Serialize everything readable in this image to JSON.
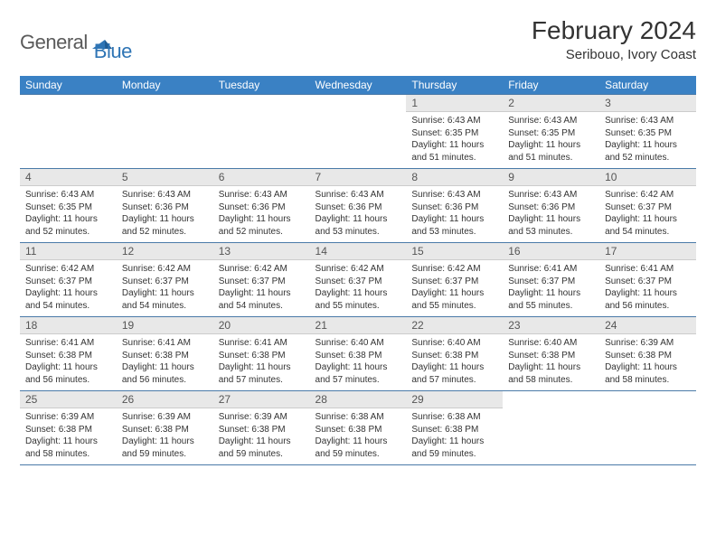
{
  "logo": {
    "text1": "General",
    "text2": "Blue"
  },
  "title": "February 2024",
  "subtitle": "Seribouo, Ivory Coast",
  "colors": {
    "header_bg": "#3a81c4",
    "header_text": "#ffffff",
    "daynum_bg": "#e8e8e8",
    "row_border": "#4a7aa8",
    "logo_gray": "#5a5a5a",
    "logo_blue": "#2f75b5"
  },
  "weekdays": [
    "Sunday",
    "Monday",
    "Tuesday",
    "Wednesday",
    "Thursday",
    "Friday",
    "Saturday"
  ],
  "weeks": [
    [
      {
        "empty": true
      },
      {
        "empty": true
      },
      {
        "empty": true
      },
      {
        "empty": true
      },
      {
        "day": "1",
        "sunrise": "6:43 AM",
        "sunset": "6:35 PM",
        "daylight": "11 hours and 51 minutes."
      },
      {
        "day": "2",
        "sunrise": "6:43 AM",
        "sunset": "6:35 PM",
        "daylight": "11 hours and 51 minutes."
      },
      {
        "day": "3",
        "sunrise": "6:43 AM",
        "sunset": "6:35 PM",
        "daylight": "11 hours and 52 minutes."
      }
    ],
    [
      {
        "day": "4",
        "sunrise": "6:43 AM",
        "sunset": "6:35 PM",
        "daylight": "11 hours and 52 minutes."
      },
      {
        "day": "5",
        "sunrise": "6:43 AM",
        "sunset": "6:36 PM",
        "daylight": "11 hours and 52 minutes."
      },
      {
        "day": "6",
        "sunrise": "6:43 AM",
        "sunset": "6:36 PM",
        "daylight": "11 hours and 52 minutes."
      },
      {
        "day": "7",
        "sunrise": "6:43 AM",
        "sunset": "6:36 PM",
        "daylight": "11 hours and 53 minutes."
      },
      {
        "day": "8",
        "sunrise": "6:43 AM",
        "sunset": "6:36 PM",
        "daylight": "11 hours and 53 minutes."
      },
      {
        "day": "9",
        "sunrise": "6:43 AM",
        "sunset": "6:36 PM",
        "daylight": "11 hours and 53 minutes."
      },
      {
        "day": "10",
        "sunrise": "6:42 AM",
        "sunset": "6:37 PM",
        "daylight": "11 hours and 54 minutes."
      }
    ],
    [
      {
        "day": "11",
        "sunrise": "6:42 AM",
        "sunset": "6:37 PM",
        "daylight": "11 hours and 54 minutes."
      },
      {
        "day": "12",
        "sunrise": "6:42 AM",
        "sunset": "6:37 PM",
        "daylight": "11 hours and 54 minutes."
      },
      {
        "day": "13",
        "sunrise": "6:42 AM",
        "sunset": "6:37 PM",
        "daylight": "11 hours and 54 minutes."
      },
      {
        "day": "14",
        "sunrise": "6:42 AM",
        "sunset": "6:37 PM",
        "daylight": "11 hours and 55 minutes."
      },
      {
        "day": "15",
        "sunrise": "6:42 AM",
        "sunset": "6:37 PM",
        "daylight": "11 hours and 55 minutes."
      },
      {
        "day": "16",
        "sunrise": "6:41 AM",
        "sunset": "6:37 PM",
        "daylight": "11 hours and 55 minutes."
      },
      {
        "day": "17",
        "sunrise": "6:41 AM",
        "sunset": "6:37 PM",
        "daylight": "11 hours and 56 minutes."
      }
    ],
    [
      {
        "day": "18",
        "sunrise": "6:41 AM",
        "sunset": "6:38 PM",
        "daylight": "11 hours and 56 minutes."
      },
      {
        "day": "19",
        "sunrise": "6:41 AM",
        "sunset": "6:38 PM",
        "daylight": "11 hours and 56 minutes."
      },
      {
        "day": "20",
        "sunrise": "6:41 AM",
        "sunset": "6:38 PM",
        "daylight": "11 hours and 57 minutes."
      },
      {
        "day": "21",
        "sunrise": "6:40 AM",
        "sunset": "6:38 PM",
        "daylight": "11 hours and 57 minutes."
      },
      {
        "day": "22",
        "sunrise": "6:40 AM",
        "sunset": "6:38 PM",
        "daylight": "11 hours and 57 minutes."
      },
      {
        "day": "23",
        "sunrise": "6:40 AM",
        "sunset": "6:38 PM",
        "daylight": "11 hours and 58 minutes."
      },
      {
        "day": "24",
        "sunrise": "6:39 AM",
        "sunset": "6:38 PM",
        "daylight": "11 hours and 58 minutes."
      }
    ],
    [
      {
        "day": "25",
        "sunrise": "6:39 AM",
        "sunset": "6:38 PM",
        "daylight": "11 hours and 58 minutes."
      },
      {
        "day": "26",
        "sunrise": "6:39 AM",
        "sunset": "6:38 PM",
        "daylight": "11 hours and 59 minutes."
      },
      {
        "day": "27",
        "sunrise": "6:39 AM",
        "sunset": "6:38 PM",
        "daylight": "11 hours and 59 minutes."
      },
      {
        "day": "28",
        "sunrise": "6:38 AM",
        "sunset": "6:38 PM",
        "daylight": "11 hours and 59 minutes."
      },
      {
        "day": "29",
        "sunrise": "6:38 AM",
        "sunset": "6:38 PM",
        "daylight": "11 hours and 59 minutes."
      },
      {
        "empty": true
      },
      {
        "empty": true
      }
    ]
  ],
  "labels": {
    "sunrise": "Sunrise:",
    "sunset": "Sunset:",
    "daylight": "Daylight:"
  }
}
